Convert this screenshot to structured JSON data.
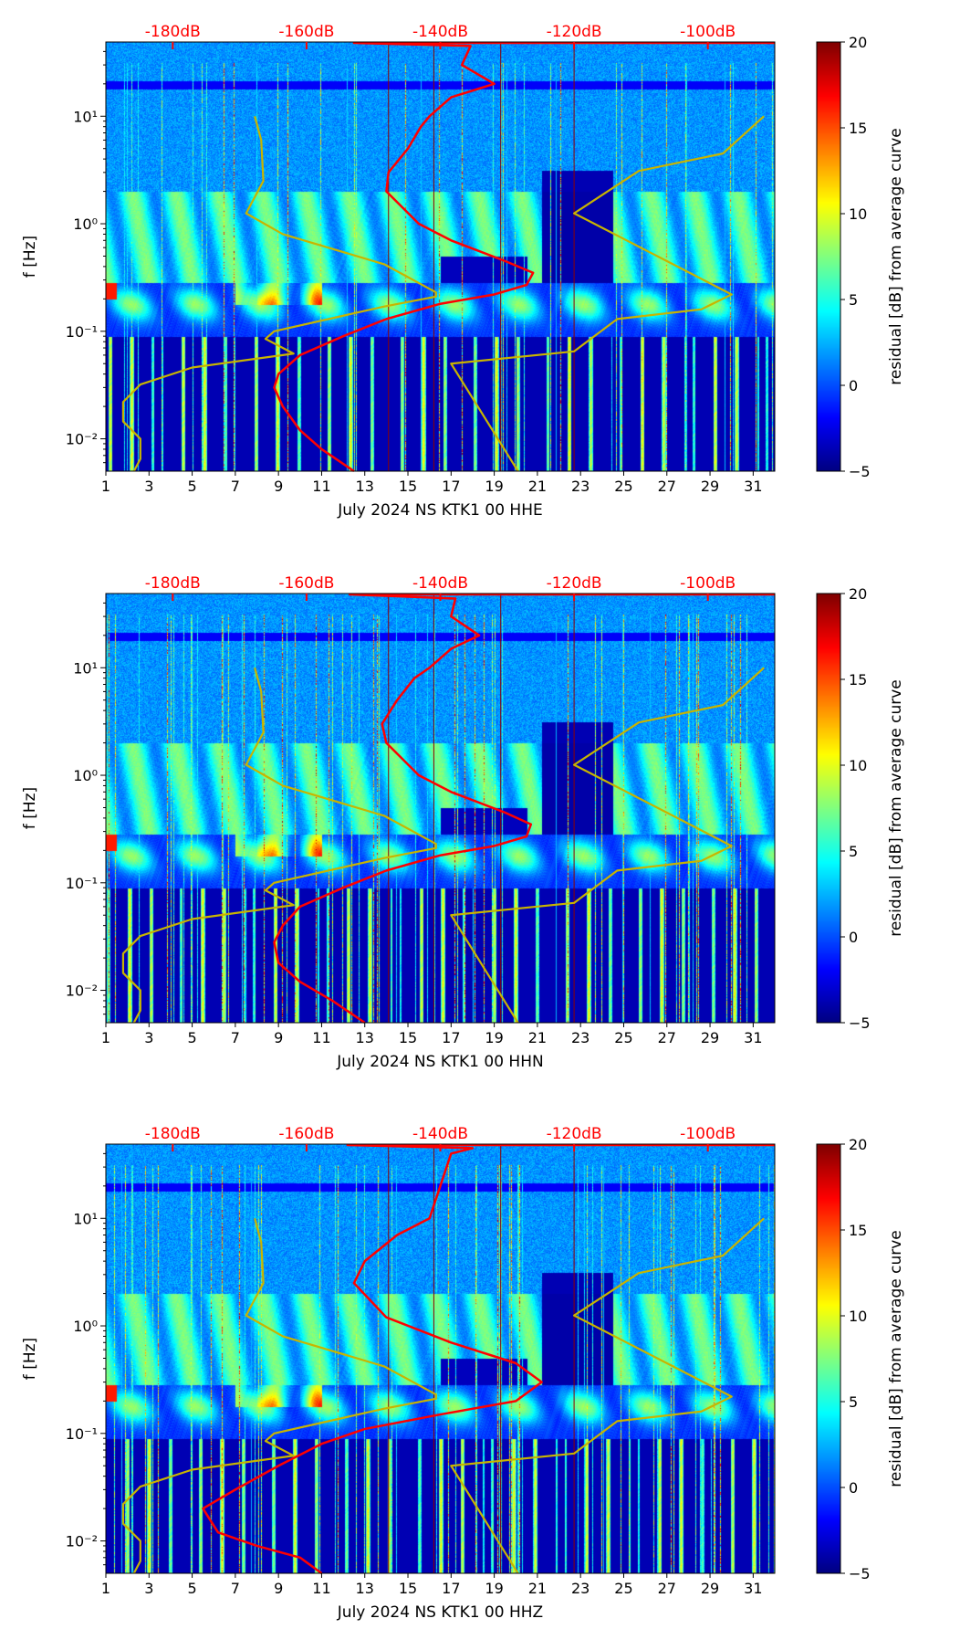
{
  "chart_data": [
    {
      "type": "heatmap",
      "title": "",
      "xlabel": "July 2024 NS KTK1 00 HHE",
      "ylabel": "f [Hz]",
      "x_ticks": [
        1,
        3,
        5,
        7,
        9,
        11,
        13,
        15,
        17,
        19,
        21,
        23,
        25,
        27,
        29,
        31
      ],
      "xlim": [
        1,
        32
      ],
      "ylim": [
        0.005,
        49
      ],
      "yscale": "log",
      "y_ticks": [
        {
          "v": 10,
          "label": "10^1"
        },
        {
          "v": 1,
          "label": "10^0"
        },
        {
          "v": 0.1,
          "label": "10^-1"
        },
        {
          "v": 0.01,
          "label": "10^-2"
        }
      ],
      "top_axis": {
        "ticks": [
          {
            "day": 4.1,
            "label": "-180dB"
          },
          {
            "day": 10.3,
            "label": "-160dB"
          },
          {
            "day": 16.5,
            "label": "-140dB"
          },
          {
            "day": 22.7,
            "label": "-120dB"
          },
          {
            "day": 28.9,
            "label": "-100dB"
          }
        ],
        "color": "#ff0000"
      },
      "colorbar": {
        "label": "residual [dB] from average curve",
        "range": [
          -5,
          20
        ],
        "ticks": [
          -5,
          0,
          5,
          10,
          15,
          20
        ],
        "colormap": "jet"
      },
      "vertical_lines_days": [
        14.1,
        16.2,
        19.3,
        22.7
      ],
      "series": [
        {
          "name": "average-psd",
          "color": "#ff0000",
          "points": [
            [
              12.5,
              0.005
            ],
            [
              11,
              0.008
            ],
            [
              10,
              0.012
            ],
            [
              9.2,
              0.02
            ],
            [
              8.8,
              0.03
            ],
            [
              9,
              0.04
            ],
            [
              10,
              0.06
            ],
            [
              12,
              0.09
            ],
            [
              14,
              0.13
            ],
            [
              16.5,
              0.18
            ],
            [
              19,
              0.22
            ],
            [
              20.5,
              0.27
            ],
            [
              20.8,
              0.35
            ],
            [
              19.5,
              0.45
            ],
            [
              17,
              0.7
            ],
            [
              15.5,
              1
            ],
            [
              14,
              2
            ],
            [
              14.1,
              3
            ],
            [
              15,
              5
            ],
            [
              15.6,
              8
            ],
            [
              16,
              10
            ],
            [
              17,
              15
            ],
            [
              19,
              20
            ],
            [
              17.5,
              30
            ],
            [
              17.9,
              45
            ],
            [
              12.5,
              48
            ],
            [
              32,
              48
            ]
          ]
        },
        {
          "name": "noise-model-low",
          "color": "#c8b400",
          "points": [
            [
              2.3,
              0.005
            ],
            [
              2.6,
              0.0065
            ],
            [
              2.6,
              0.01
            ],
            [
              1.8,
              0.0145
            ],
            [
              1.8,
              0.022
            ],
            [
              2.6,
              0.032
            ],
            [
              5,
              0.046
            ],
            [
              9.7,
              0.062
            ],
            [
              8.4,
              0.085
            ],
            [
              8.8,
              0.1
            ],
            [
              13.9,
              0.17
            ],
            [
              16.3,
              0.21
            ],
            [
              16.3,
              0.23
            ],
            [
              13.9,
              0.42
            ],
            [
              9.2,
              0.8
            ],
            [
              7.5,
              1.25
            ],
            [
              8.3,
              2.5
            ],
            [
              8.2,
              6
            ],
            [
              7.9,
              10
            ]
          ]
        },
        {
          "name": "noise-model-high",
          "color": "#c8b400",
          "points": [
            [
              20.1,
              0.005
            ],
            [
              17,
              0.05
            ],
            [
              22.7,
              0.065
            ],
            [
              24.7,
              0.13
            ],
            [
              28.6,
              0.16
            ],
            [
              30,
              0.22
            ],
            [
              22.7,
              1.25
            ],
            [
              25.7,
              3.1
            ],
            [
              29.6,
              4.5
            ],
            [
              31.5,
              10
            ]
          ]
        }
      ]
    },
    {
      "type": "heatmap",
      "title": "",
      "xlabel": "July 2024 NS KTK1 00 HHN",
      "ylabel": "f [Hz]",
      "x_ticks": [
        1,
        3,
        5,
        7,
        9,
        11,
        13,
        15,
        17,
        19,
        21,
        23,
        25,
        27,
        29,
        31
      ],
      "xlim": [
        1,
        32
      ],
      "ylim": [
        0.005,
        49
      ],
      "yscale": "log",
      "y_ticks": [
        {
          "v": 10,
          "label": "10^1"
        },
        {
          "v": 1,
          "label": "10^0"
        },
        {
          "v": 0.1,
          "label": "10^-1"
        },
        {
          "v": 0.01,
          "label": "10^-2"
        }
      ],
      "top_axis": {
        "ticks": [
          {
            "day": 4.1,
            "label": "-180dB"
          },
          {
            "day": 10.3,
            "label": "-160dB"
          },
          {
            "day": 16.5,
            "label": "-140dB"
          },
          {
            "day": 22.7,
            "label": "-120dB"
          },
          {
            "day": 28.9,
            "label": "-100dB"
          }
        ],
        "color": "#ff0000"
      },
      "colorbar": {
        "label": "residual [dB] from average curve",
        "range": [
          -5,
          20
        ],
        "ticks": [
          -5,
          0,
          5,
          10,
          15,
          20
        ],
        "colormap": "jet"
      },
      "vertical_lines_days": [
        14.1,
        16.2,
        19.3,
        22.7
      ],
      "series": [
        {
          "name": "average-psd",
          "color": "#ff0000",
          "points": [
            [
              13,
              0.005
            ],
            [
              11.5,
              0.008
            ],
            [
              10,
              0.012
            ],
            [
              9,
              0.018
            ],
            [
              8.8,
              0.028
            ],
            [
              9.2,
              0.04
            ],
            [
              10,
              0.06
            ],
            [
              12,
              0.09
            ],
            [
              14,
              0.13
            ],
            [
              16.5,
              0.18
            ],
            [
              19,
              0.22
            ],
            [
              20.5,
              0.27
            ],
            [
              20.7,
              0.35
            ],
            [
              19.5,
              0.45
            ],
            [
              17,
              0.7
            ],
            [
              15.5,
              1
            ],
            [
              14,
              2
            ],
            [
              13.8,
              3
            ],
            [
              14.5,
              5
            ],
            [
              15.3,
              8
            ],
            [
              16,
              10
            ],
            [
              17,
              15
            ],
            [
              18.3,
              20
            ],
            [
              17,
              30
            ],
            [
              17.2,
              44
            ],
            [
              12.3,
              48
            ],
            [
              32,
              48
            ]
          ]
        },
        {
          "name": "noise-model-low",
          "color": "#c8b400",
          "points": [
            [
              2.3,
              0.005
            ],
            [
              2.6,
              0.0065
            ],
            [
              2.6,
              0.01
            ],
            [
              1.8,
              0.0145
            ],
            [
              1.8,
              0.022
            ],
            [
              2.6,
              0.032
            ],
            [
              5,
              0.046
            ],
            [
              9.7,
              0.062
            ],
            [
              8.4,
              0.085
            ],
            [
              8.8,
              0.1
            ],
            [
              13.9,
              0.17
            ],
            [
              16.3,
              0.21
            ],
            [
              16.3,
              0.23
            ],
            [
              13.9,
              0.42
            ],
            [
              9.2,
              0.8
            ],
            [
              7.5,
              1.25
            ],
            [
              8.3,
              2.5
            ],
            [
              8.2,
              6
            ],
            [
              7.9,
              10
            ]
          ]
        },
        {
          "name": "noise-model-high",
          "color": "#c8b400",
          "points": [
            [
              20.1,
              0.005
            ],
            [
              17,
              0.05
            ],
            [
              22.7,
              0.065
            ],
            [
              24.7,
              0.13
            ],
            [
              28.6,
              0.16
            ],
            [
              30,
              0.22
            ],
            [
              22.7,
              1.25
            ],
            [
              25.7,
              3.1
            ],
            [
              29.6,
              4.5
            ],
            [
              31.5,
              10
            ]
          ]
        }
      ]
    },
    {
      "type": "heatmap",
      "title": "",
      "xlabel": "July 2024 NS KTK1 00 HHZ",
      "ylabel": "f [Hz]",
      "x_ticks": [
        1,
        3,
        5,
        7,
        9,
        11,
        13,
        15,
        17,
        19,
        21,
        23,
        25,
        27,
        29,
        31
      ],
      "xlim": [
        1,
        32
      ],
      "ylim": [
        0.005,
        49
      ],
      "yscale": "log",
      "y_ticks": [
        {
          "v": 10,
          "label": "10^1"
        },
        {
          "v": 1,
          "label": "10^0"
        },
        {
          "v": 0.1,
          "label": "10^-1"
        },
        {
          "v": 0.01,
          "label": "10^-2"
        }
      ],
      "top_axis": {
        "ticks": [
          {
            "day": 4.1,
            "label": "-180dB"
          },
          {
            "day": 10.3,
            "label": "-160dB"
          },
          {
            "day": 16.5,
            "label": "-140dB"
          },
          {
            "day": 22.7,
            "label": "-120dB"
          },
          {
            "day": 28.9,
            "label": "-100dB"
          }
        ],
        "color": "#ff0000"
      },
      "colorbar": {
        "label": "residual [dB] from average curve",
        "range": [
          -5,
          20
        ],
        "ticks": [
          -5,
          0,
          5,
          10,
          15,
          20
        ],
        "colormap": "jet"
      },
      "vertical_lines_days": [
        14.1,
        16.2,
        19.3,
        22.7
      ],
      "series": [
        {
          "name": "average-psd",
          "color": "#ff0000",
          "points": [
            [
              11,
              0.005
            ],
            [
              10,
              0.007
            ],
            [
              8,
              0.009
            ],
            [
              6.2,
              0.012
            ],
            [
              5.5,
              0.02
            ],
            [
              7,
              0.03
            ],
            [
              9,
              0.05
            ],
            [
              11,
              0.08
            ],
            [
              13,
              0.11
            ],
            [
              16.5,
              0.15
            ],
            [
              20,
              0.2
            ],
            [
              21.2,
              0.3
            ],
            [
              20,
              0.45
            ],
            [
              17,
              0.7
            ],
            [
              14,
              1.2
            ],
            [
              12.5,
              2.5
            ],
            [
              13,
              4
            ],
            [
              14.5,
              7
            ],
            [
              16,
              10
            ],
            [
              16.5,
              20
            ],
            [
              17,
              40
            ],
            [
              18,
              45
            ],
            [
              12.2,
              48
            ],
            [
              32,
              48
            ]
          ]
        },
        {
          "name": "noise-model-low",
          "color": "#c8b400",
          "points": [
            [
              2.3,
              0.005
            ],
            [
              2.6,
              0.0065
            ],
            [
              2.6,
              0.01
            ],
            [
              1.8,
              0.0145
            ],
            [
              1.8,
              0.022
            ],
            [
              2.6,
              0.032
            ],
            [
              5,
              0.046
            ],
            [
              9.7,
              0.062
            ],
            [
              8.4,
              0.085
            ],
            [
              8.8,
              0.1
            ],
            [
              13.9,
              0.17
            ],
            [
              16.3,
              0.21
            ],
            [
              16.3,
              0.23
            ],
            [
              13.9,
              0.42
            ],
            [
              9.2,
              0.8
            ],
            [
              7.5,
              1.25
            ],
            [
              8.3,
              2.5
            ],
            [
              8.2,
              6
            ],
            [
              7.9,
              10
            ]
          ]
        },
        {
          "name": "noise-model-high",
          "color": "#c8b400",
          "points": [
            [
              20.1,
              0.005
            ],
            [
              17,
              0.05
            ],
            [
              22.7,
              0.065
            ],
            [
              24.7,
              0.13
            ],
            [
              28.6,
              0.16
            ],
            [
              30,
              0.22
            ],
            [
              22.7,
              1.25
            ],
            [
              25.7,
              3.1
            ],
            [
              29.6,
              4.5
            ],
            [
              31.5,
              10
            ]
          ]
        }
      ]
    }
  ]
}
